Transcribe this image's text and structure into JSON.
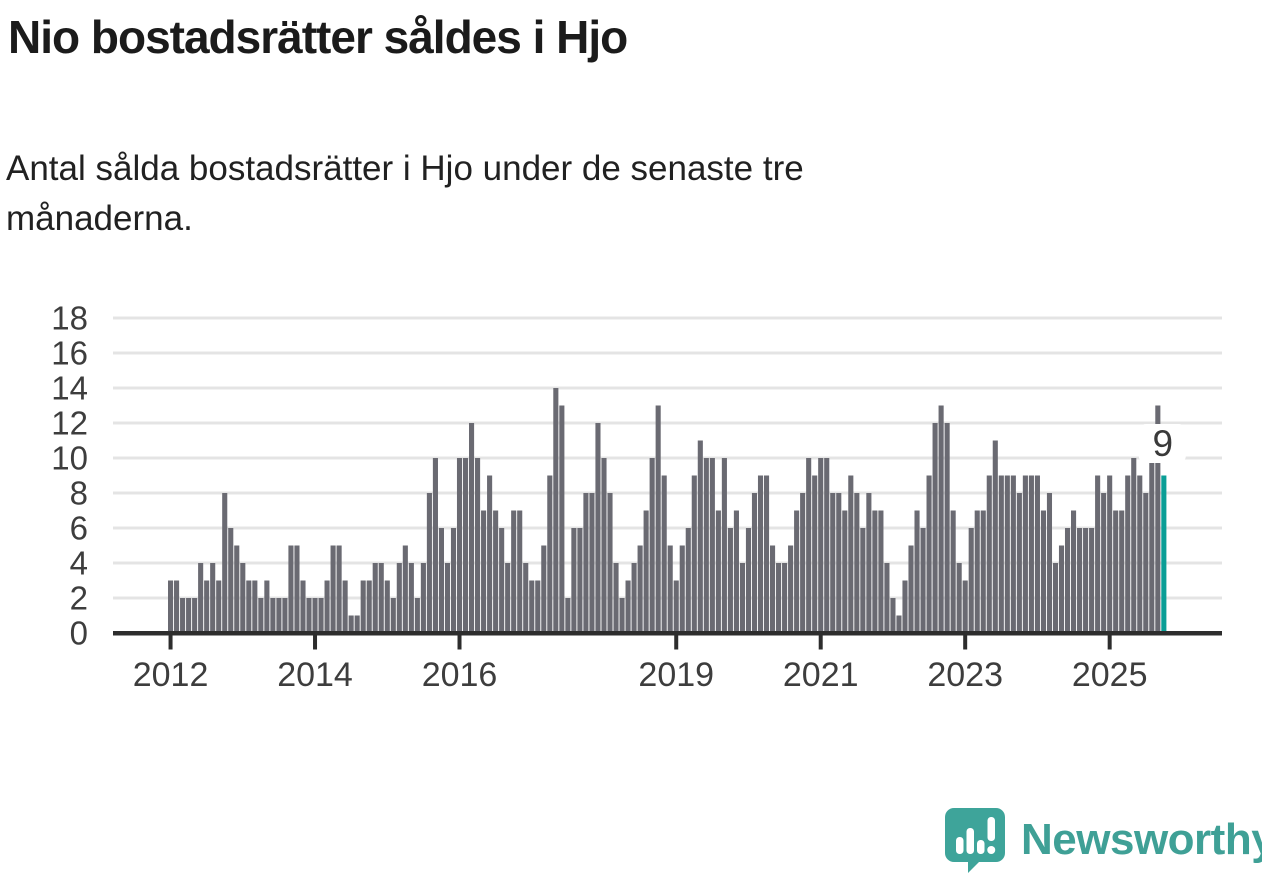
{
  "header": {
    "title": "Nio bostadsrätter såldes i Hjo",
    "subtitle": "Antal sålda bostadsrätter i Hjo under de senaste tre\nmånaderna."
  },
  "chart_data": {
    "type": "bar",
    "title": "Nio bostadsrätter såldes i Hjo",
    "subtitle": "Antal sålda bostadsrätter i Hjo under de senaste tre månaderna.",
    "x_unit": "month",
    "x_start": "2012-01",
    "x_end": "2025-10",
    "values": [
      3,
      3,
      2,
      2,
      2,
      4,
      3,
      4,
      3,
      8,
      6,
      5,
      4,
      3,
      3,
      2,
      3,
      2,
      2,
      2,
      5,
      5,
      3,
      2,
      2,
      2,
      3,
      5,
      5,
      3,
      1,
      1,
      3,
      3,
      4,
      4,
      3,
      2,
      4,
      5,
      4,
      2,
      4,
      8,
      10,
      6,
      4,
      6,
      10,
      10,
      12,
      10,
      7,
      9,
      7,
      6,
      4,
      7,
      7,
      4,
      3,
      3,
      5,
      9,
      14,
      13,
      2,
      6,
      6,
      8,
      8,
      12,
      10,
      8,
      4,
      2,
      3,
      4,
      5,
      7,
      10,
      13,
      9,
      5,
      3,
      5,
      6,
      9,
      11,
      10,
      10,
      7,
      10,
      6,
      7,
      4,
      6,
      8,
      9,
      9,
      5,
      4,
      4,
      5,
      7,
      8,
      10,
      9,
      10,
      10,
      8,
      8,
      7,
      9,
      8,
      6,
      8,
      7,
      7,
      4,
      2,
      1,
      3,
      5,
      7,
      6,
      9,
      12,
      13,
      12,
      7,
      4,
      3,
      6,
      7,
      7,
      9,
      11,
      9,
      9,
      9,
      8,
      9,
      9,
      9,
      7,
      8,
      4,
      5,
      6,
      7,
      6,
      6,
      6,
      9,
      8,
      9,
      7,
      7,
      9,
      10,
      9,
      8,
      10,
      13,
      9
    ],
    "highlight_last": true,
    "last_value_label": "9",
    "ylim": [
      0,
      18
    ],
    "yticks": [
      0,
      2,
      4,
      6,
      8,
      10,
      12,
      14,
      16,
      18
    ],
    "xticks": [
      {
        "label": "2012",
        "month_index": 0
      },
      {
        "label": "2014",
        "month_index": 24
      },
      {
        "label": "2016",
        "month_index": 48
      },
      {
        "label": "2019",
        "month_index": 84
      },
      {
        "label": "2021",
        "month_index": 108
      },
      {
        "label": "2023",
        "month_index": 132
      },
      {
        "label": "2025",
        "month_index": 156
      }
    ],
    "grid": "horizontal",
    "legend": "none",
    "colors": {
      "bar": "#6a6a72",
      "highlight_bar": "#0a9e96",
      "gridline": "#e4e4e4",
      "axis_line": "#2d2d2d",
      "axis_text": "#3d3d3d",
      "annotation_text": "#3a3a3a",
      "annotation_box": "#ffffff"
    }
  },
  "footer": {
    "brand": "Newsworthy",
    "brand_color": "#3FA096",
    "logo_color": "#3EA49A"
  }
}
